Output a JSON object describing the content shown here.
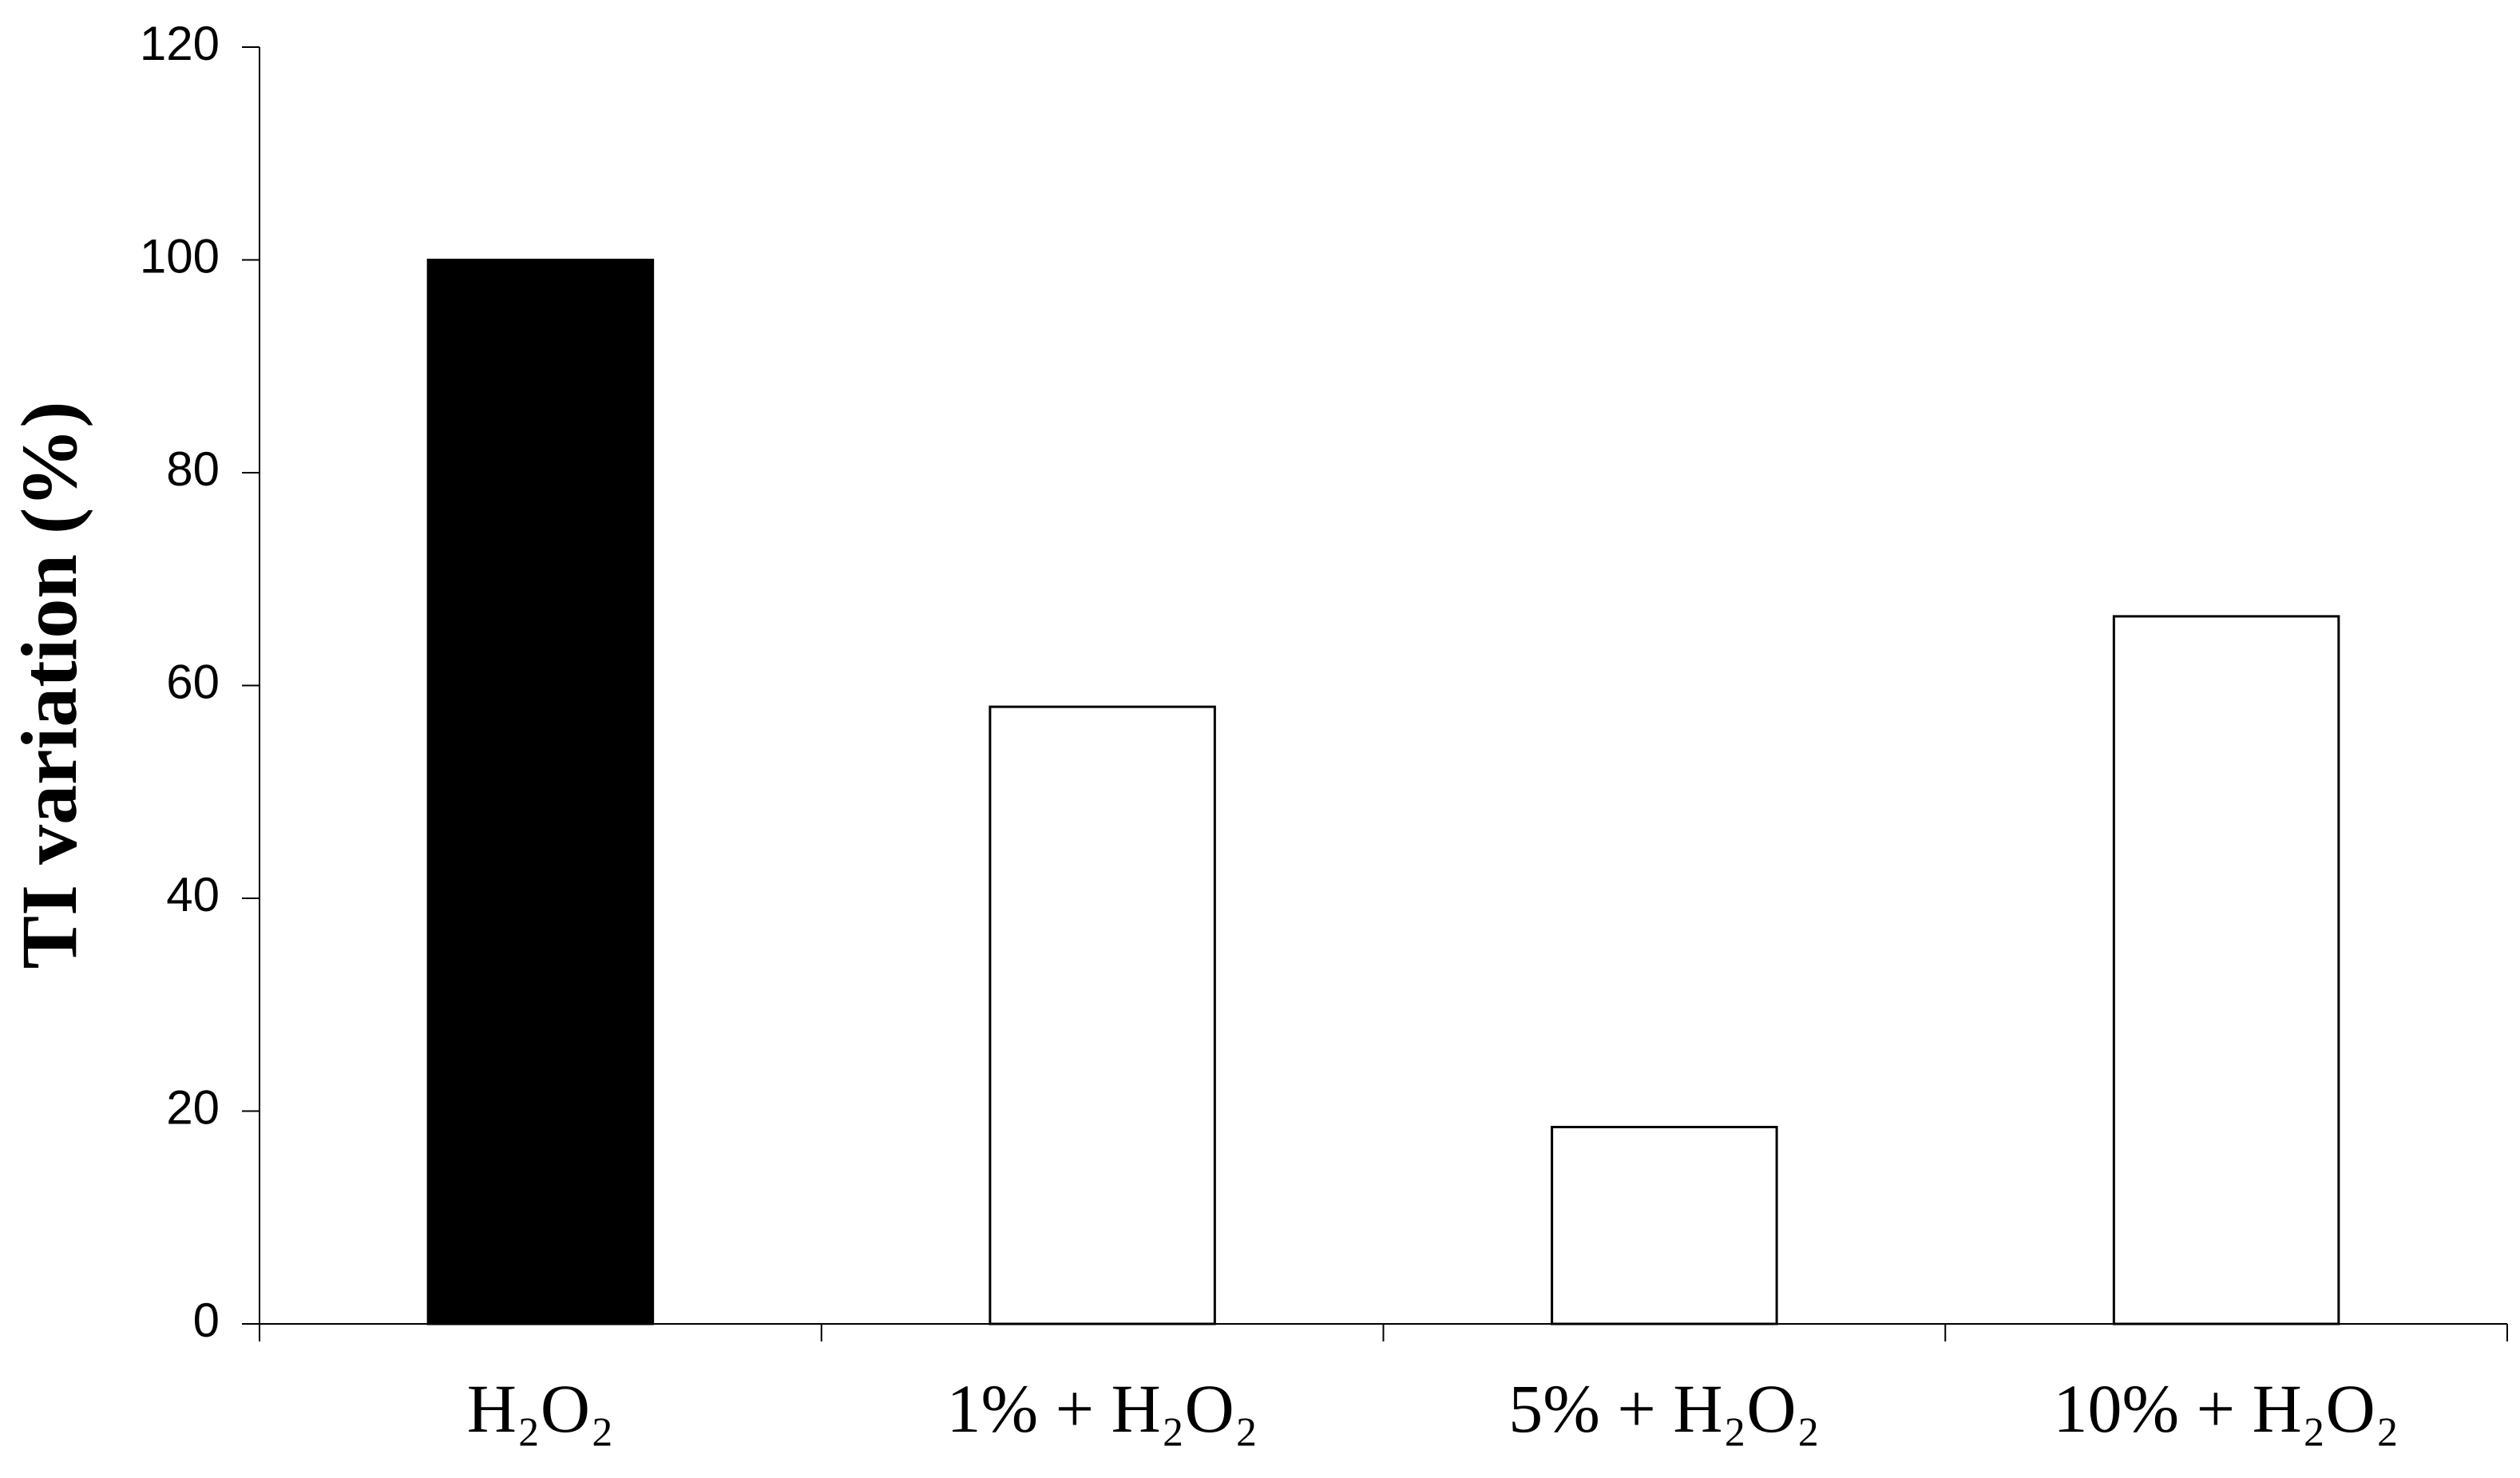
{
  "chart_data": {
    "type": "bar",
    "y_label": "TI variation (%)",
    "categories": [
      "H₂O₂",
      "1% + H₂O₂",
      "5% + H₂O₂",
      "10% + H₂O₂"
    ],
    "values": [
      100,
      58,
      18.5,
      66.5
    ],
    "colors": [
      "#000000",
      "#ffffff",
      "#ffffff",
      "#ffffff"
    ],
    "edge_color": "#000000",
    "ylim": [
      0,
      120
    ],
    "yticks": [
      0,
      20,
      40,
      60,
      80,
      100,
      120
    ],
    "grid": false
  }
}
